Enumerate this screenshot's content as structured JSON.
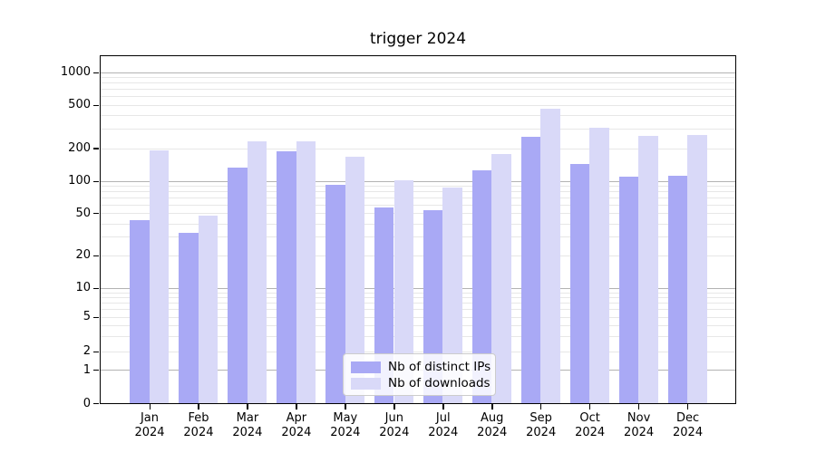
{
  "figure": {
    "background": "#ffffff"
  },
  "chart_data": {
    "type": "bar",
    "title": "trigger 2024",
    "categories": [
      "Jan",
      "Feb",
      "Mar",
      "Apr",
      "May",
      "Jun",
      "Jul",
      "Aug",
      "Sep",
      "Oct",
      "Nov",
      "Dec"
    ],
    "category_year": "2024",
    "series": [
      {
        "name": "Nb of distinct IPs",
        "color": "#a9a9f5",
        "values": [
          43,
          33,
          133,
          189,
          92,
          57,
          53,
          126,
          256,
          144,
          109,
          112
        ]
      },
      {
        "name": "Nb of downloads",
        "color": "#d9d9f8",
        "values": [
          192,
          47,
          230,
          230,
          167,
          102,
          87,
          178,
          464,
          310,
          261,
          266
        ]
      }
    ],
    "xlabel": "",
    "ylabel": "",
    "yscale": "symlog",
    "y_tick_values": [
      1000,
      500,
      200,
      100,
      50,
      20,
      10,
      5,
      2,
      1,
      0
    ],
    "ylim": [
      0,
      1400
    ],
    "grid": "horizontal major+minor",
    "legend_position": "inside lower-center-left",
    "colors": {
      "major_grid": "#b3b3b3",
      "minor_grid": "#e7e7e7",
      "axis": "#000000",
      "text": "#000000"
    }
  }
}
